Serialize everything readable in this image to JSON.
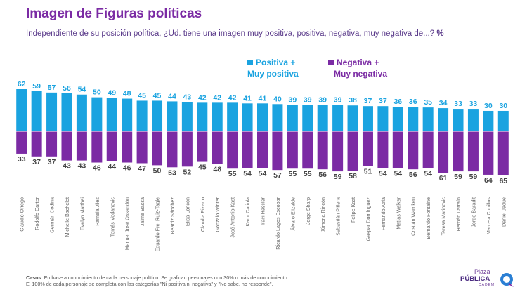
{
  "header": {
    "title": "Imagen de Figuras políticas",
    "subtitle": "Independiente de su posición política, ¿Ud. tiene una imagen muy positiva, positiva, negativa, muy negativa de...?",
    "subtitle_pct": "%"
  },
  "legend": {
    "positive_line1": "Positiva +",
    "positive_line2": "Muy positiva",
    "negative_line1": "Negativa +",
    "negative_line2": "Muy negativa"
  },
  "colors": {
    "positive": "#1aa3e0",
    "negative": "#7b2ba4",
    "title": "#7b2ba4"
  },
  "chart_data": {
    "type": "bar",
    "title": "Imagen de Figuras políticas",
    "categories": [
      "Claudio Orrego",
      "Rodolfo Carter",
      "Germán Codina",
      "Michelle Bachelet",
      "Evelyn Matthei",
      "Pamela Jiles",
      "Tomás Vodanovic",
      "Manuel José Ossandón",
      "Jaime Bassa",
      "Eduardo Frei Ruiz-Tagle",
      "Beatriz Sánchez",
      "Elisa Loncón",
      "Claudia Pizarro",
      "Gonzalo Winter",
      "José Antonio Kast",
      "Karol Cariola",
      "Iraci Hassler",
      "Ricardo Lagos Escobar",
      "Álvaro Elizalde",
      "Jorge Sharp",
      "Ximena Rincón",
      "Sebastián Piñera",
      "Felipe Kast",
      "Gaspar Domínguez",
      "Fernando Atria",
      "Matías Walker",
      "Cristián Warnken",
      "Bernardo Fontaine",
      "Teresa Marinovic",
      "Hernán Larraín",
      "Jorge Baradit",
      "Marcela Cubillos",
      "Daniel Jadue"
    ],
    "series": [
      {
        "name": "Positiva + Muy positiva",
        "values": [
          62,
          59,
          57,
          56,
          54,
          50,
          49,
          48,
          45,
          45,
          44,
          43,
          42,
          42,
          42,
          41,
          41,
          40,
          39,
          39,
          39,
          39,
          38,
          37,
          37,
          36,
          36,
          35,
          34,
          33,
          33,
          30,
          30
        ]
      },
      {
        "name": "Negativa + Muy negativa",
        "values": [
          33,
          37,
          37,
          43,
          43,
          46,
          44,
          46,
          47,
          50,
          53,
          52,
          45,
          48,
          55,
          54,
          54,
          57,
          55,
          55,
          56,
          59,
          58,
          51,
          54,
          54,
          56,
          54,
          61,
          59,
          59,
          64,
          65
        ]
      }
    ],
    "ylim": [
      -65,
      62
    ],
    "grid": false,
    "legend_position": "top-center"
  },
  "footnote": {
    "label": "Casos",
    "line1": ": En base a conocimiento de cada personaje político. Se grafican personajes con 30% o más de conocimiento.",
    "line2": "El 100% de cada personaje se completa con las categorías \"Ni positiva ni negativa\" y \"No sabe, no responde\"."
  },
  "logo": {
    "line1": "Plaza",
    "line2": "PÚBLICA",
    "line3": "CADEM"
  }
}
